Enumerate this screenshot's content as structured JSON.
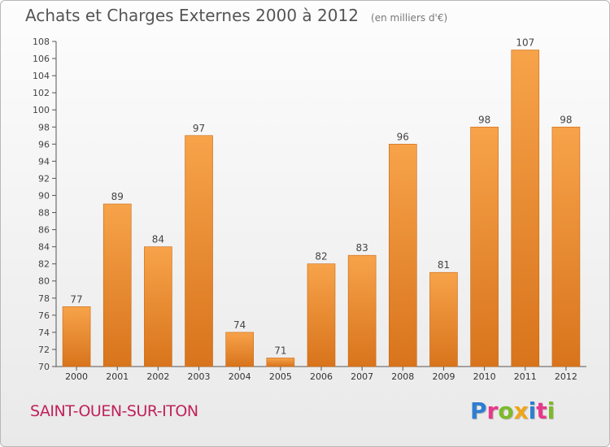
{
  "chart_data": {
    "type": "bar",
    "title": "Achats et Charges Externes 2000 à 2012",
    "unit": "(en milliers d'€)",
    "categories": [
      "2000",
      "2001",
      "2002",
      "2003",
      "2004",
      "2005",
      "2006",
      "2007",
      "2008",
      "2009",
      "2010",
      "2011",
      "2012"
    ],
    "values": [
      77,
      89,
      84,
      97,
      74,
      71,
      82,
      83,
      96,
      81,
      98,
      107,
      98
    ],
    "data_labels": [
      "77",
      "89",
      "84",
      "97",
      "74",
      "71",
      "82",
      "83",
      "96",
      "81",
      "98",
      "107",
      "98"
    ],
    "y_ticks": [
      "70",
      "72",
      "74",
      "76",
      "78",
      "80",
      "82",
      "84",
      "86",
      "88",
      "90",
      "92",
      "94",
      "96",
      "98",
      "100",
      "102",
      "104",
      "106",
      "108"
    ],
    "ylim": [
      70,
      108
    ],
    "xlabel": "",
    "ylabel": "",
    "grid": false,
    "colors": {
      "bar_light": "#f7a34a",
      "bar_dark": "#d8741c",
      "bar_edge": "#c9670f"
    }
  },
  "footer": {
    "city": "SAINT-OUEN-SUR-ITON",
    "brand": "Proxiti",
    "brand_colors": [
      "#2e7dd1",
      "#e8388a",
      "#7cba2a",
      "#f0a51a",
      "#2e7dd1",
      "#e8388a",
      "#7cba2a"
    ]
  }
}
